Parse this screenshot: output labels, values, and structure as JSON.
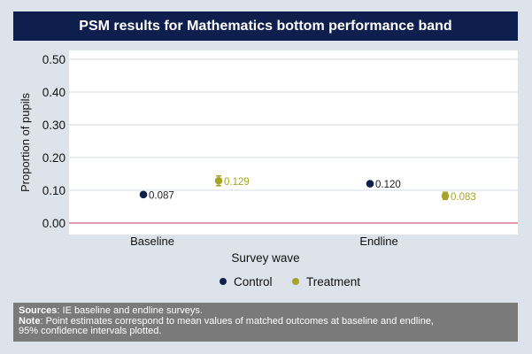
{
  "header": {
    "title": "PSM results for Mathematics bottom performance band"
  },
  "footer": {
    "sources_label": "Sources",
    "sources_text": ": IE baseline and endline surveys.",
    "note_label": "Note",
    "note_text": ": Point estimates correspond to mean values of matched outcomes at baseline and endline,",
    "note_text2": "95% confidence intervals plotted."
  },
  "colors": {
    "control": "#0e1f4d",
    "treatment": "#a7a42a",
    "zero_line": "#d0607a",
    "title_bg": "#0e1f4d",
    "footer_bg": "#7a7a7a"
  },
  "chart_data": {
    "type": "scatter",
    "xlabel": "Survey wave",
    "ylabel": "Proportion of pupils",
    "categories": [
      "Baseline",
      "Endline"
    ],
    "ylim": [
      0,
      0.5
    ],
    "yticks": [
      "0.00",
      "0.10",
      "0.20",
      "0.30",
      "0.40",
      "0.50"
    ],
    "grid": true,
    "legend": "bottom",
    "series": [
      {
        "name": "Control",
        "color": "#0e1f4d",
        "values": [
          0.087,
          0.12
        ],
        "labels": [
          "0.087",
          "0.120"
        ],
        "ci": [
          null,
          null
        ]
      },
      {
        "name": "Treatment",
        "color": "#a7a42a",
        "values": [
          0.129,
          0.083
        ],
        "labels": [
          "0.129",
          "0.083"
        ],
        "ci": [
          [
            0.114,
            0.144
          ],
          [
            0.072,
            0.094
          ]
        ]
      }
    ]
  }
}
